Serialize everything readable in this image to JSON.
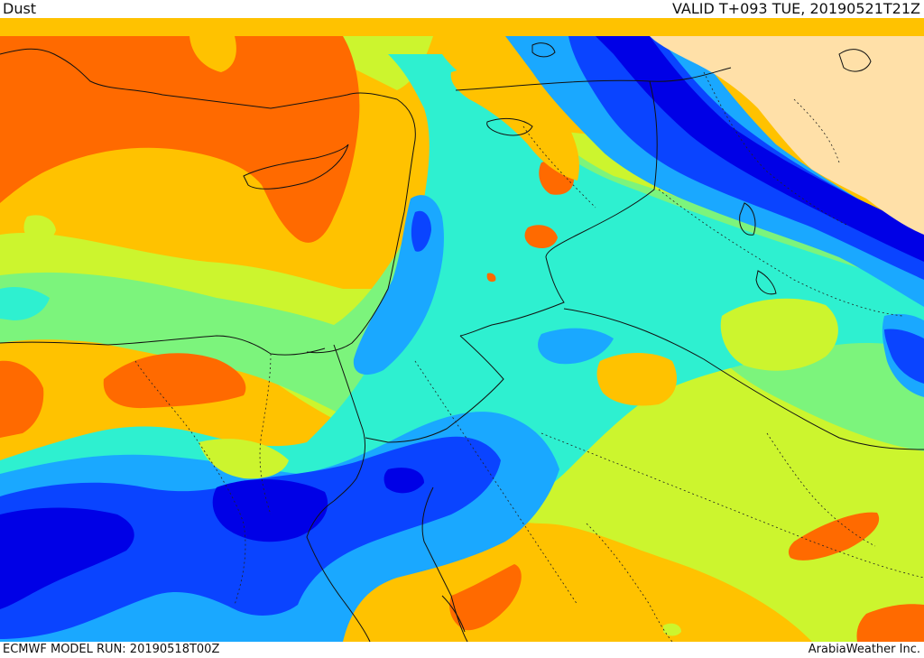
{
  "header": {
    "title": "Dust",
    "valid": "VALID T+093 TUE, 20190521T21Z"
  },
  "footer": {
    "model_run": "ECMWF MODEL RUN: 20190518T00Z",
    "credit": "ArabiaWeather Inc."
  },
  "map": {
    "field": "dust",
    "palette": {
      "level_1": "#0000e6",
      "level_2": "#0a44ff",
      "level_3": "#1aa8ff",
      "level_4": "#2ef0d0",
      "level_5": "#7cf47c",
      "level_6": "#ccf52e",
      "level_7": "#ffc200",
      "level_8": "#ff6a00",
      "no_data_land": "#ffe0a8"
    }
  }
}
